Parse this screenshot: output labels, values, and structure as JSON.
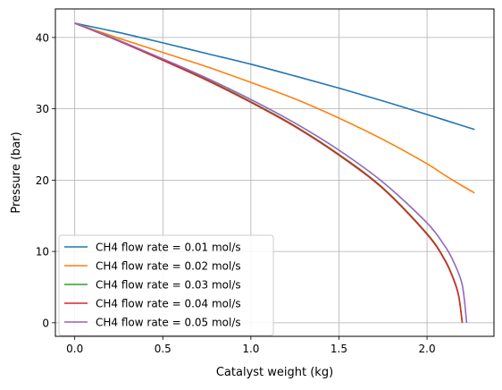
{
  "chart_data": {
    "type": "line",
    "title": "",
    "xlabel": "Catalyst weight (kg)",
    "ylabel": "Pressure (bar)",
    "xlim": [
      -0.11,
      2.38
    ],
    "ylim": [
      -1.9,
      44.0
    ],
    "xticks": [
      0.0,
      0.5,
      1.0,
      1.5,
      2.0
    ],
    "xtick_labels": [
      "0.0",
      "0.5",
      "1.0",
      "1.5",
      "2.0"
    ],
    "yticks": [
      0,
      10,
      20,
      30,
      40
    ],
    "ytick_labels": [
      "0",
      "10",
      "20",
      "30",
      "40"
    ],
    "grid": true,
    "legend_position": "lower-left",
    "series": [
      {
        "name": "CH4 flow rate = 0.01 mol/s",
        "color": "#1f77b4",
        "x": [
          0.0,
          0.25,
          0.5,
          0.75,
          1.0,
          1.25,
          1.5,
          1.75,
          2.0,
          2.27
        ],
        "y": [
          42.0,
          40.7,
          39.25,
          37.75,
          36.25,
          34.6,
          32.9,
          31.1,
          29.2,
          27.1
        ]
      },
      {
        "name": "CH4 flow rate = 0.02 mol/s",
        "color": "#ff7f0e",
        "x": [
          0.0,
          0.25,
          0.5,
          0.75,
          1.0,
          1.25,
          1.5,
          1.75,
          2.0,
          2.1,
          2.2,
          2.27
        ],
        "y": [
          42.0,
          39.9,
          37.9,
          35.9,
          33.7,
          31.4,
          28.7,
          25.7,
          22.3,
          20.7,
          19.2,
          18.2
        ]
      },
      {
        "name": "CH4 flow rate = 0.03 mol/s",
        "color": "#2ca02c",
        "x": [
          0.0,
          0.25,
          0.5,
          0.75,
          1.0,
          1.25,
          1.5,
          1.75,
          2.0,
          2.1,
          2.15,
          2.18,
          2.2
        ],
        "y": [
          42.0,
          39.6,
          36.9,
          34.1,
          31.0,
          27.6,
          23.6,
          18.9,
          12.5,
          8.9,
          6.2,
          3.8,
          0.0
        ]
      },
      {
        "name": "CH4 flow rate = 0.04 mol/s",
        "color": "#d62728",
        "x": [
          0.0,
          0.25,
          0.5,
          0.75,
          1.0,
          1.25,
          1.5,
          1.75,
          2.0,
          2.1,
          2.15,
          2.18,
          2.2
        ],
        "y": [
          42.0,
          39.5,
          36.8,
          34.0,
          30.9,
          27.5,
          23.5,
          18.8,
          12.4,
          8.8,
          6.1,
          3.7,
          0.0
        ]
      },
      {
        "name": "CH4 flow rate = 0.05 mol/s",
        "color": "#9467bd",
        "x": [
          0.0,
          0.25,
          0.5,
          0.75,
          1.0,
          1.25,
          1.5,
          1.75,
          2.0,
          2.1,
          2.15,
          2.2,
          2.225
        ],
        "y": [
          42.0,
          39.6,
          37.0,
          34.3,
          31.3,
          28.0,
          24.2,
          19.7,
          14.0,
          10.8,
          8.6,
          5.3,
          0.0
        ]
      }
    ]
  }
}
